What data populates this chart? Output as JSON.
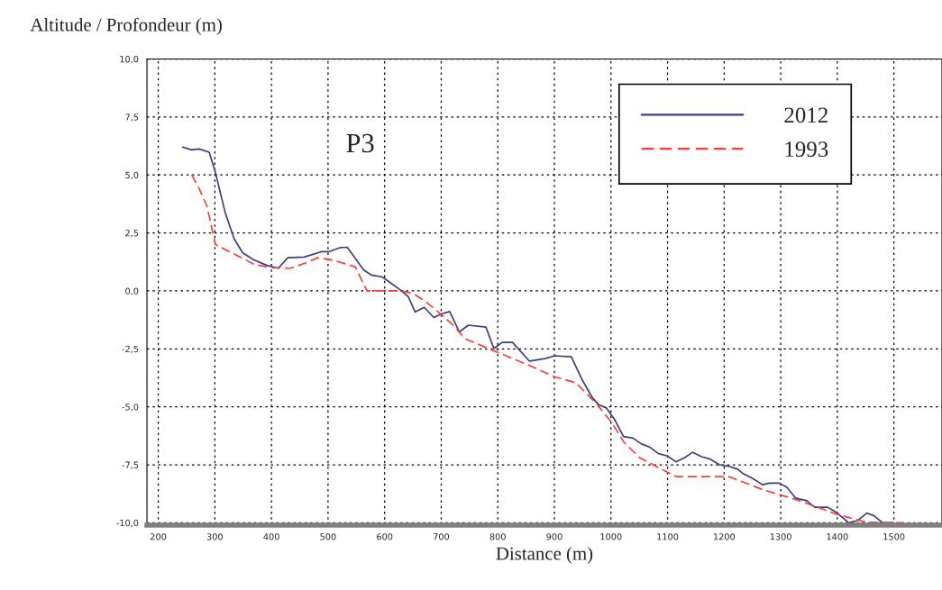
{
  "chart_data": {
    "type": "line",
    "xlabel": "Distance (m)",
    "ylabel": "Altitude / Profondeur (m)",
    "annotations": [
      "P3"
    ],
    "xlim": [
      180,
      1585
    ],
    "xticks": [
      200,
      300,
      400,
      500,
      600,
      700,
      800,
      900,
      1000,
      1100,
      1200,
      1300,
      1400,
      1500
    ],
    "ylim": [
      -10.1,
      10
    ],
    "yticks": [
      {
        "value": -10,
        "label": "-10,0"
      },
      {
        "value": -7.5,
        "label": "-7,5"
      },
      {
        "value": -5,
        "label": "-5,0"
      },
      {
        "value": -2.5,
        "label": "-2,5"
      },
      {
        "value": 0,
        "label": "0,0"
      },
      {
        "value": 2.5,
        "label": "2,5"
      },
      {
        "value": 5,
        "label": "5,0"
      },
      {
        "value": 7.5,
        "label": "7,5"
      },
      {
        "value": 10,
        "label": "10,0"
      }
    ],
    "grid": true,
    "legend": "top right",
    "series": [
      {
        "name": "2012",
        "color": "#3a3f78",
        "line_style": "solid",
        "x": [
          243,
          259,
          272,
          290,
          300,
          318,
          334,
          349,
          368,
          392,
          412,
          429,
          458,
          488,
          501,
          522,
          534,
          563,
          577,
          596,
          630,
          642,
          654,
          670,
          687,
          699,
          715,
          732,
          748,
          779,
          793,
          808,
          826,
          856,
          883,
          901,
          930,
          949,
          967,
          978,
          992,
          1007,
          1022,
          1039,
          1054,
          1068,
          1084,
          1099,
          1115,
          1131,
          1144,
          1160,
          1174,
          1192,
          1208,
          1224,
          1234,
          1250,
          1268,
          1280,
          1298,
          1311,
          1326,
          1346,
          1360,
          1383,
          1399,
          1420,
          1436,
          1452,
          1465,
          1480,
          1499
        ],
        "values": [
          6.2,
          6.08,
          6.12,
          5.98,
          5.2,
          3.4,
          2.25,
          1.65,
          1.35,
          1.1,
          0.98,
          1.43,
          1.46,
          1.69,
          1.69,
          1.87,
          1.88,
          0.9,
          0.68,
          0.6,
          0.0,
          -0.26,
          -0.91,
          -0.71,
          -1.15,
          -1.0,
          -0.89,
          -1.77,
          -1.48,
          -1.56,
          -2.48,
          -2.22,
          -2.22,
          -3.03,
          -2.92,
          -2.8,
          -2.84,
          -3.83,
          -4.6,
          -4.9,
          -5.05,
          -5.57,
          -6.28,
          -6.35,
          -6.6,
          -6.73,
          -7.02,
          -7.11,
          -7.37,
          -7.18,
          -6.96,
          -7.15,
          -7.24,
          -7.5,
          -7.56,
          -7.69,
          -7.89,
          -8.08,
          -8.36,
          -8.29,
          -8.29,
          -8.47,
          -8.93,
          -9.05,
          -9.33,
          -9.33,
          -9.56,
          -10.0,
          -9.9,
          -9.58,
          -9.7,
          -10.0,
          -10.0
        ]
      },
      {
        "name": "1993",
        "color": "#ff3b3b",
        "line_style": "dashed",
        "x": [
          259,
          272,
          286,
          301,
          333,
          371,
          402,
          434,
          460,
          482,
          508,
          548,
          569,
          630,
          651,
          672,
          699,
          720,
          742,
          795,
          859,
          900,
          938,
          975,
          1002,
          1023,
          1050,
          1100,
          1116,
          1208,
          1272,
          1325,
          1362,
          1399,
          1452,
          1484,
          1515
        ],
        "values": [
          5.0,
          4.43,
          3.66,
          2.0,
          1.6,
          1.13,
          1.0,
          0.98,
          1.2,
          1.43,
          1.33,
          1.04,
          0.0,
          0.0,
          -0.12,
          -0.45,
          -1.0,
          -1.45,
          -2.06,
          -2.6,
          -3.25,
          -3.7,
          -3.96,
          -4.88,
          -5.7,
          -6.53,
          -7.18,
          -7.82,
          -8.01,
          -8.01,
          -8.6,
          -8.98,
          -9.3,
          -9.63,
          -9.98,
          -10.0,
          -10.0
        ]
      }
    ]
  }
}
